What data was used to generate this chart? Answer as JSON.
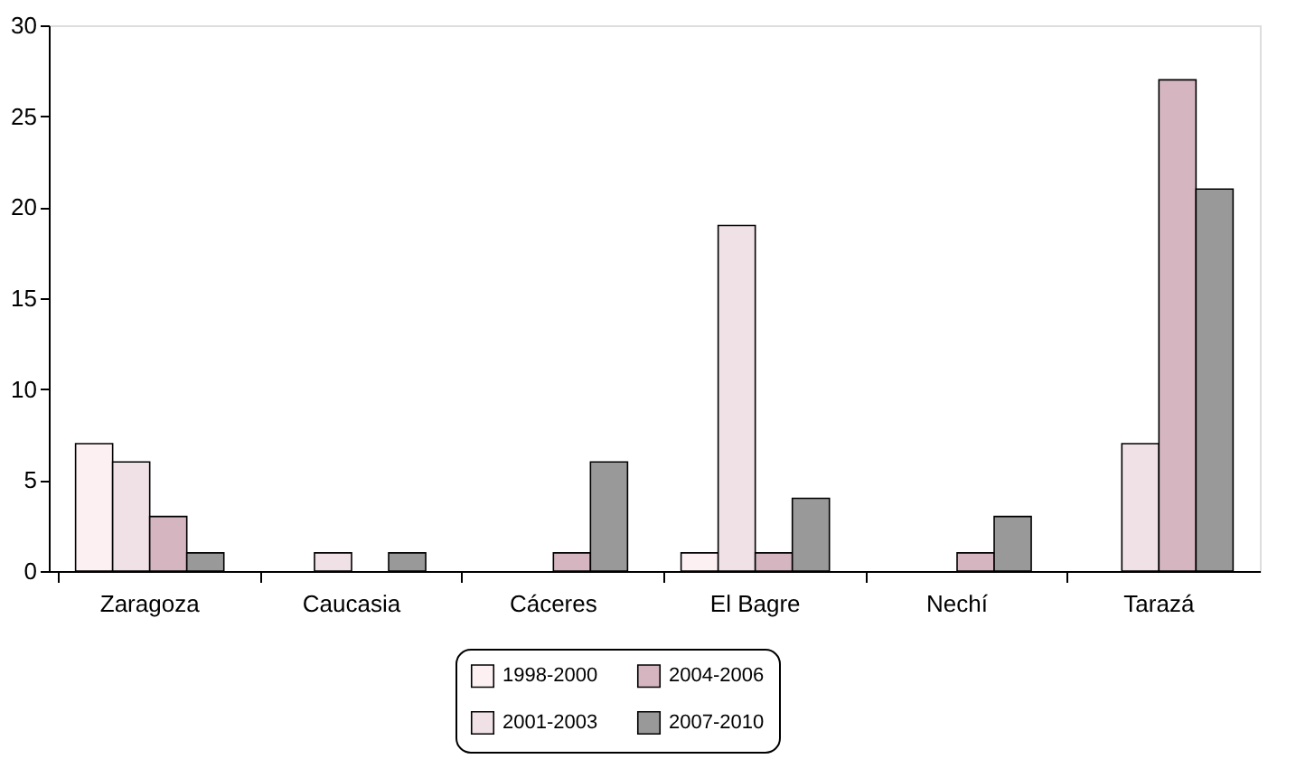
{
  "chart_data": {
    "type": "bar",
    "categories": [
      "Zaragoza",
      "Caucasia",
      "Cáceres",
      "El Bagre",
      "Nechí",
      "Tarazá"
    ],
    "series": [
      {
        "name": "1998-2000",
        "color": "#fcf0f3",
        "values": [
          7,
          null,
          null,
          1,
          null,
          null
        ]
      },
      {
        "name": "2001-2003",
        "color": "#efe1e5",
        "values": [
          6,
          1,
          null,
          19,
          null,
          7
        ]
      },
      {
        "name": "2004-2006",
        "color": "#d5b6c0",
        "values": [
          3,
          null,
          1,
          1,
          1,
          27
        ]
      },
      {
        "name": "2007-2010",
        "color": "#999999",
        "values": [
          1,
          1,
          6,
          4,
          3,
          21
        ]
      }
    ],
    "ylim": [
      0,
      30
    ],
    "yticks": [
      0,
      5,
      10,
      15,
      20,
      25,
      30
    ],
    "grid": false,
    "legend": "bottom"
  }
}
